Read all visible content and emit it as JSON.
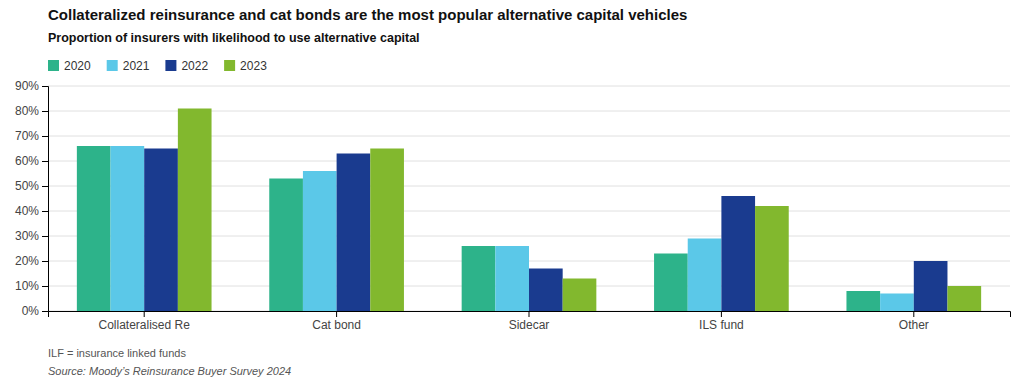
{
  "chart_data": {
    "type": "bar",
    "title": "Collateralized reinsurance and cat bonds are the most popular alternative capital vehicles",
    "subtitle": "Proportion of insurers with likelihood to use alternative capital",
    "annotations": [
      "ILF = insurance linked funds",
      "Source: Moody’s Reinsurance Buyer Survey 2024"
    ],
    "categories": [
      "Collateralised Re",
      "Cat bond",
      "Sidecar",
      "ILS fund",
      "Other"
    ],
    "series": [
      {
        "name": "2020",
        "color": "#2db38a",
        "values": [
          0.66,
          0.53,
          0.26,
          0.23,
          0.08
        ]
      },
      {
        "name": "2021",
        "color": "#5bc8e8",
        "values": [
          0.66,
          0.56,
          0.26,
          0.29,
          0.07
        ]
      },
      {
        "name": "2022",
        "color": "#1a3b8f",
        "values": [
          0.65,
          0.63,
          0.17,
          0.46,
          0.2
        ]
      },
      {
        "name": "2023",
        "color": "#82b82e",
        "values": [
          0.81,
          0.65,
          0.13,
          0.42,
          0.1
        ]
      }
    ],
    "ylim": [
      0,
      0.9
    ],
    "yticks": [
      {
        "value": 0.0,
        "label": "0%"
      },
      {
        "value": 0.1,
        "label": "10%"
      },
      {
        "value": 0.2,
        "label": "20%"
      },
      {
        "value": 0.3,
        "label": "30%"
      },
      {
        "value": 0.4,
        "label": "40%"
      },
      {
        "value": 0.5,
        "label": "50%"
      },
      {
        "value": 0.6,
        "label": "60%"
      },
      {
        "value": 0.7,
        "label": "70%"
      },
      {
        "value": 0.8,
        "label": "80%"
      },
      {
        "value": 0.9,
        "label": "90%"
      }
    ],
    "grid": true,
    "legend": "upper left"
  }
}
